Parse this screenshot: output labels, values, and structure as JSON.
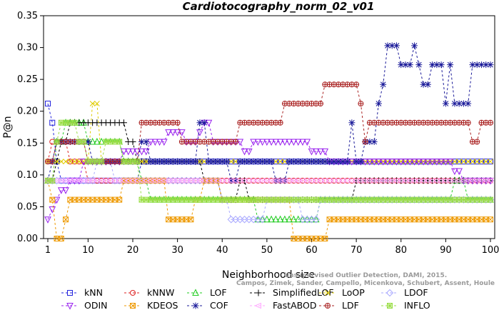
{
  "chart_data": {
    "type": "line",
    "title": "Cardiotocography_norm_02_v01",
    "xlabel": "Neighborhood size",
    "ylabel": "P@n",
    "xlim": [
      0,
      100
    ],
    "ylim": [
      0,
      0.35
    ],
    "xticks": [
      1,
      10,
      20,
      30,
      40,
      50,
      60,
      70,
      80,
      90,
      100
    ],
    "yticks": [
      "0.00",
      "0.05",
      "0.10",
      "0.15",
      "0.20",
      "0.25",
      "0.30",
      "0.35"
    ],
    "credit": [
      "Campos, Zimek, Sander, Campello, Micenkova, Schubert, Assent, Houle",
      "Unsupervised Outlier Detection, DAMI, 2015."
    ],
    "legend_position": "bottom",
    "series": [
      {
        "name": "kNN",
        "color": "#2222dd",
        "marker": "square",
        "points": [
          [
            1,
            0.212
          ],
          [
            2,
            0.182
          ],
          [
            3,
            0.121
          ],
          [
            4,
            0.091
          ],
          [
            6,
            0.091
          ],
          [
            10,
            0.091
          ],
          [
            15,
            0.091
          ],
          [
            20,
            0.091
          ],
          [
            22,
            0.121
          ],
          [
            30,
            0.121
          ],
          [
            40,
            0.121
          ],
          [
            50,
            0.121
          ],
          [
            60,
            0.121
          ],
          [
            70,
            0.121
          ],
          [
            80,
            0.121
          ],
          [
            90,
            0.121
          ],
          [
            100,
            0.121
          ]
        ]
      },
      {
        "name": "kNNW",
        "color": "#dd2222",
        "marker": "circle",
        "points": [
          [
            1,
            0.121
          ],
          [
            2,
            0.152
          ],
          [
            4,
            0.152
          ],
          [
            6,
            0.121
          ],
          [
            10,
            0.091
          ],
          [
            20,
            0.091
          ],
          [
            30,
            0.091
          ],
          [
            40,
            0.091
          ],
          [
            50,
            0.091
          ],
          [
            60,
            0.091
          ],
          [
            70,
            0.091
          ],
          [
            80,
            0.091
          ],
          [
            90,
            0.091
          ],
          [
            100,
            0.091
          ]
        ]
      },
      {
        "name": "LOF",
        "color": "#22cc22",
        "marker": "triangle-up",
        "points": [
          [
            1,
            0.091
          ],
          [
            3,
            0.152
          ],
          [
            5,
            0.182
          ],
          [
            8,
            0.182
          ],
          [
            10,
            0.152
          ],
          [
            14,
            0.152
          ],
          [
            18,
            0.121
          ],
          [
            22,
            0.091
          ],
          [
            24,
            0.061
          ],
          [
            30,
            0.061
          ],
          [
            40,
            0.061
          ],
          [
            46,
            0.061
          ],
          [
            48,
            0.03
          ],
          [
            60,
            0.03
          ],
          [
            62,
            0.061
          ],
          [
            70,
            0.061
          ],
          [
            80,
            0.061
          ],
          [
            90,
            0.061
          ],
          [
            92,
            0.091
          ],
          [
            95,
            0.061
          ],
          [
            100,
            0.061
          ]
        ]
      },
      {
        "name": "SimplifiedLOF",
        "color": "#000000",
        "marker": "plus",
        "points": [
          [
            1,
            0.091
          ],
          [
            3,
            0.121
          ],
          [
            4,
            0.152
          ],
          [
            6,
            0.182
          ],
          [
            12,
            0.182
          ],
          [
            17,
            0.182
          ],
          [
            19,
            0.152
          ],
          [
            21,
            0.121
          ],
          [
            24,
            0.121
          ],
          [
            30,
            0.121
          ],
          [
            36,
            0.091
          ],
          [
            40,
            0.061
          ],
          [
            44,
            0.091
          ],
          [
            46,
            0.061
          ],
          [
            54,
            0.061
          ],
          [
            56,
            0.061
          ],
          [
            58,
            0.061
          ],
          [
            60,
            0.061
          ],
          [
            62,
            0.061
          ],
          [
            64,
            0.061
          ],
          [
            68,
            0.061
          ],
          [
            70,
            0.091
          ],
          [
            80,
            0.091
          ],
          [
            90,
            0.091
          ],
          [
            100,
            0.091
          ]
        ]
      },
      {
        "name": "LoOP",
        "color": "#e0cc00",
        "marker": "x",
        "points": [
          [
            1,
            0.121
          ],
          [
            3,
            0.121
          ],
          [
            5,
            0.121
          ],
          [
            8,
            0.121
          ],
          [
            11,
            0.212
          ],
          [
            13,
            0.121
          ],
          [
            16,
            0.121
          ],
          [
            20,
            0.121
          ],
          [
            24,
            0.121
          ],
          [
            30,
            0.121
          ],
          [
            40,
            0.121
          ],
          [
            50,
            0.121
          ],
          [
            60,
            0.121
          ],
          [
            70,
            0.121
          ],
          [
            80,
            0.121
          ],
          [
            90,
            0.121
          ],
          [
            100,
            0.121
          ]
        ]
      },
      {
        "name": "LDOF",
        "color": "#aaaaff",
        "marker": "diamond",
        "points": [
          [
            1,
            0.091
          ],
          [
            5,
            0.091
          ],
          [
            10,
            0.091
          ],
          [
            12,
            0.121
          ],
          [
            16,
            0.091
          ],
          [
            20,
            0.091
          ],
          [
            30,
            0.091
          ],
          [
            40,
            0.061
          ],
          [
            42,
            0.03
          ],
          [
            45,
            0.03
          ],
          [
            50,
            0.061
          ],
          [
            55,
            0.061
          ],
          [
            58,
            0.03
          ],
          [
            60,
            0.03
          ],
          [
            62,
            0.061
          ],
          [
            70,
            0.061
          ],
          [
            80,
            0.061
          ],
          [
            90,
            0.061
          ],
          [
            100,
            0.061
          ]
        ]
      },
      {
        "name": "ODIN",
        "color": "#9922ee",
        "marker": "triangle-down",
        "points": [
          [
            1,
            0.03
          ],
          [
            2,
            0.046
          ],
          [
            3,
            0.061
          ],
          [
            4,
            0.076
          ],
          [
            6,
            0.091
          ],
          [
            9,
            0.121
          ],
          [
            12,
            0.121
          ],
          [
            15,
            0.121
          ],
          [
            18,
            0.137
          ],
          [
            20,
            0.137
          ],
          [
            24,
            0.152
          ],
          [
            28,
            0.167
          ],
          [
            30,
            0.167
          ],
          [
            32,
            0.152
          ],
          [
            35,
            0.167
          ],
          [
            36,
            0.182
          ],
          [
            38,
            0.152
          ],
          [
            42,
            0.152
          ],
          [
            45,
            0.137
          ],
          [
            47,
            0.152
          ],
          [
            50,
            0.152
          ],
          [
            55,
            0.152
          ],
          [
            58,
            0.152
          ],
          [
            60,
            0.137
          ],
          [
            62,
            0.137
          ],
          [
            64,
            0.121
          ],
          [
            70,
            0.121
          ],
          [
            80,
            0.121
          ],
          [
            90,
            0.121
          ],
          [
            92,
            0.106
          ],
          [
            94,
            0.091
          ],
          [
            96,
            0.091
          ],
          [
            100,
            0.091
          ]
        ]
      },
      {
        "name": "KDEOS",
        "color": "#ee9900",
        "marker": "square-x",
        "points": [
          [
            1,
            0.091
          ],
          [
            2,
            0.061
          ],
          [
            3,
            0.0
          ],
          [
            4,
            0.0
          ],
          [
            5,
            0.03
          ],
          [
            6,
            0.061
          ],
          [
            10,
            0.061
          ],
          [
            14,
            0.061
          ],
          [
            18,
            0.091
          ],
          [
            22,
            0.091
          ],
          [
            26,
            0.091
          ],
          [
            28,
            0.03
          ],
          [
            32,
            0.03
          ],
          [
            34,
            0.061
          ],
          [
            36,
            0.091
          ],
          [
            40,
            0.061
          ],
          [
            45,
            0.061
          ],
          [
            50,
            0.061
          ],
          [
            54,
            0.061
          ],
          [
            56,
            0.0
          ],
          [
            58,
            0.0
          ],
          [
            62,
            0.0
          ],
          [
            64,
            0.03
          ],
          [
            70,
            0.03
          ],
          [
            80,
            0.03
          ],
          [
            90,
            0.03
          ],
          [
            100,
            0.03
          ]
        ]
      },
      {
        "name": "COF",
        "color": "#1a1a99",
        "marker": "star",
        "points": [
          [
            1,
            0.091
          ],
          [
            2,
            0.121
          ],
          [
            3,
            0.152
          ],
          [
            5,
            0.152
          ],
          [
            7,
            0.152
          ],
          [
            9,
            0.152
          ],
          [
            11,
            0.121
          ],
          [
            13,
            0.121
          ],
          [
            15,
            0.121
          ],
          [
            18,
            0.121
          ],
          [
            22,
            0.152
          ],
          [
            24,
            0.121
          ],
          [
            28,
            0.121
          ],
          [
            32,
            0.121
          ],
          [
            34,
            0.121
          ],
          [
            35,
            0.182
          ],
          [
            37,
            0.121
          ],
          [
            40,
            0.121
          ],
          [
            42,
            0.091
          ],
          [
            44,
            0.121
          ],
          [
            48,
            0.121
          ],
          [
            52,
            0.091
          ],
          [
            55,
            0.121
          ],
          [
            60,
            0.121
          ],
          [
            62,
            0.121
          ],
          [
            65,
            0.121
          ],
          [
            68,
            0.121
          ],
          [
            69,
            0.182
          ],
          [
            70,
            0.121
          ],
          [
            72,
            0.152
          ],
          [
            74,
            0.152
          ],
          [
            75,
            0.212
          ],
          [
            76,
            0.242
          ],
          [
            77,
            0.303
          ],
          [
            79,
            0.303
          ],
          [
            80,
            0.273
          ],
          [
            82,
            0.273
          ],
          [
            83,
            0.303
          ],
          [
            84,
            0.273
          ],
          [
            85,
            0.242
          ],
          [
            87,
            0.273
          ],
          [
            89,
            0.273
          ],
          [
            90,
            0.212
          ],
          [
            91,
            0.273
          ],
          [
            92,
            0.212
          ],
          [
            95,
            0.212
          ],
          [
            96,
            0.273
          ],
          [
            98,
            0.273
          ],
          [
            100,
            0.273
          ]
        ]
      },
      {
        "name": "FastABOD",
        "color": "#ffaaff",
        "marker": "triangle-left",
        "points": [
          [
            1,
            0.091
          ],
          [
            5,
            0.091
          ],
          [
            10,
            0.091
          ],
          [
            15,
            0.091
          ],
          [
            20,
            0.091
          ],
          [
            25,
            0.091
          ],
          [
            30,
            0.091
          ],
          [
            40,
            0.091
          ],
          [
            50,
            0.091
          ],
          [
            60,
            0.091
          ],
          [
            70,
            0.091
          ],
          [
            80,
            0.091
          ],
          [
            90,
            0.091
          ],
          [
            100,
            0.091
          ]
        ]
      },
      {
        "name": "LDF",
        "color": "#aa2222",
        "marker": "circle-plus",
        "points": [
          [
            1,
            0.121
          ],
          [
            3,
            0.152
          ],
          [
            5,
            0.152
          ],
          [
            8,
            0.152
          ],
          [
            10,
            0.121
          ],
          [
            14,
            0.121
          ],
          [
            18,
            0.121
          ],
          [
            20,
            0.121
          ],
          [
            22,
            0.182
          ],
          [
            30,
            0.182
          ],
          [
            31,
            0.152
          ],
          [
            40,
            0.152
          ],
          [
            42,
            0.152
          ],
          [
            44,
            0.182
          ],
          [
            52,
            0.182
          ],
          [
            54,
            0.212
          ],
          [
            62,
            0.212
          ],
          [
            63,
            0.242
          ],
          [
            70,
            0.242
          ],
          [
            71,
            0.212
          ],
          [
            72,
            0.152
          ],
          [
            73,
            0.182
          ],
          [
            80,
            0.182
          ],
          [
            90,
            0.182
          ],
          [
            95,
            0.182
          ],
          [
            96,
            0.152
          ],
          [
            98,
            0.182
          ],
          [
            100,
            0.182
          ]
        ]
      },
      {
        "name": "INFLO",
        "color": "#99dd44",
        "marker": "square-star",
        "points": [
          [
            1,
            0.091
          ],
          [
            3,
            0.152
          ],
          [
            4,
            0.182
          ],
          [
            6,
            0.182
          ],
          [
            8,
            0.152
          ],
          [
            10,
            0.121
          ],
          [
            14,
            0.152
          ],
          [
            18,
            0.121
          ],
          [
            20,
            0.121
          ],
          [
            22,
            0.061
          ],
          [
            30,
            0.061
          ],
          [
            40,
            0.061
          ],
          [
            50,
            0.061
          ],
          [
            60,
            0.061
          ],
          [
            70,
            0.061
          ],
          [
            80,
            0.061
          ],
          [
            90,
            0.061
          ],
          [
            100,
            0.061
          ]
        ]
      }
    ]
  }
}
